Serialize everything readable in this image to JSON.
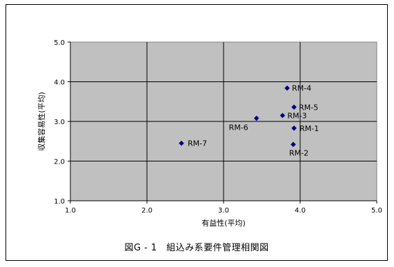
{
  "chart_data": {
    "type": "scatter",
    "title": "",
    "xlabel": "有益性(平均)",
    "ylabel": "収集容易性(平均)",
    "xlim": [
      1.0,
      5.0
    ],
    "ylim": [
      1.0,
      5.0
    ],
    "xticks": [
      "1.0",
      "2.0",
      "3.0",
      "4.0",
      "5.0"
    ],
    "yticks": [
      "1.0",
      "2.0",
      "3.0",
      "4.0",
      "5.0"
    ],
    "grid": true,
    "plot_background": "#c0c0c0",
    "marker_color": "#000080",
    "points": [
      {
        "label": "RM-1",
        "x": 3.92,
        "y": 2.83
      },
      {
        "label": "RM-2",
        "x": 3.91,
        "y": 2.42
      },
      {
        "label": "RM-3",
        "x": 3.77,
        "y": 3.15
      },
      {
        "label": "RM-4",
        "x": 3.83,
        "y": 3.84
      },
      {
        "label": "RM-5",
        "x": 3.92,
        "y": 3.36
      },
      {
        "label": "RM-6",
        "x": 3.43,
        "y": 3.08
      },
      {
        "label": "RM-7",
        "x": 2.45,
        "y": 2.45
      }
    ]
  },
  "caption": "図G - 1　組込み系要件管理相関図"
}
